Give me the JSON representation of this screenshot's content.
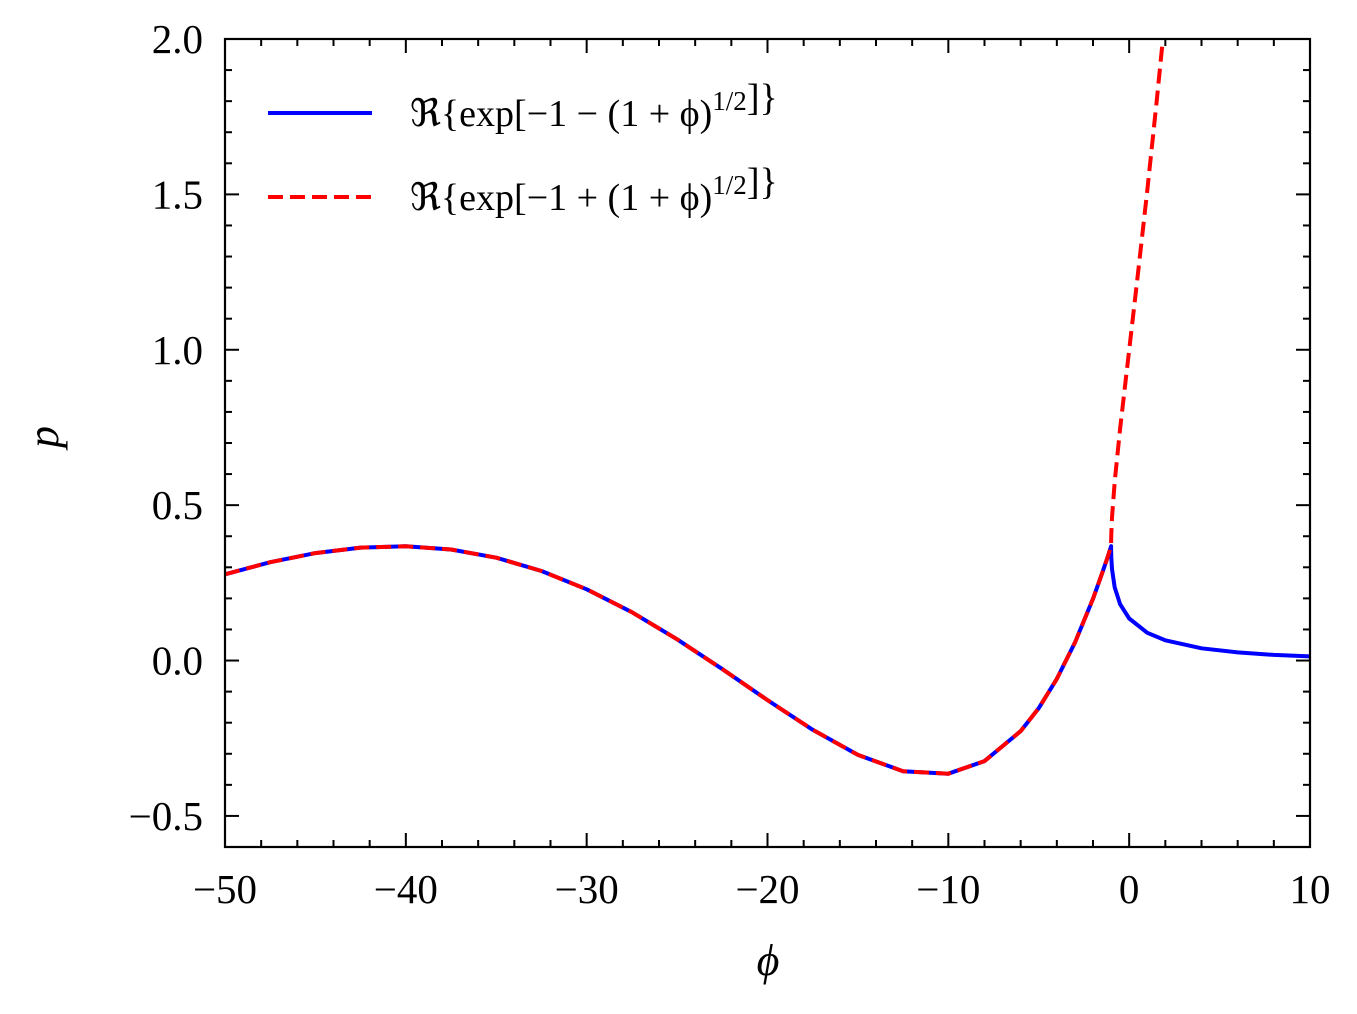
{
  "chart_data": {
    "type": "line",
    "title": "",
    "xlabel": "ϕ",
    "ylabel": "p",
    "xlim": [
      -50,
      10
    ],
    "ylim": [
      -0.6,
      2.0
    ],
    "xticks": [
      -50,
      -40,
      -30,
      -20,
      -10,
      0,
      10
    ],
    "xtick_labels": [
      "−50",
      "−40",
      "−30",
      "−20",
      "−10",
      "0",
      "10"
    ],
    "yticks": [
      -0.5,
      0.0,
      0.5,
      1.0,
      1.5,
      2.0
    ],
    "ytick_labels": [
      "−0.5",
      "0.0",
      "0.5",
      "1.0",
      "1.5",
      "2.0"
    ],
    "x_minor_step": 2,
    "y_minor_step": 0.1,
    "ticks_direction": "in",
    "grid": false,
    "legend_position": "top-left",
    "series": [
      {
        "name": "ℜ{exp[−1 − (1 + ϕ)^{1/2}]}",
        "color": "#0000ff",
        "style": "solid",
        "x": [
          -50,
          -47.5,
          -45,
          -42.5,
          -40,
          -37.5,
          -35,
          -32.5,
          -30,
          -27.5,
          -25,
          -22.5,
          -20,
          -17.5,
          -15,
          -12.5,
          -10,
          -8,
          -6,
          -5,
          -4,
          -3,
          -2,
          -1.5,
          -1.2,
          -1,
          -0.999,
          -0.99,
          -0.95,
          -0.8,
          -0.5,
          0,
          1,
          2,
          4,
          6,
          8,
          10
        ],
        "y": [
          0.2774,
          0.3164,
          0.3456,
          0.3633,
          0.3675,
          0.3573,
          0.331,
          0.2881,
          0.2293,
          0.1555,
          0.0684,
          -0.0276,
          -0.1273,
          -0.2228,
          -0.3036,
          -0.3565,
          -0.3642,
          -0.3237,
          -0.2271,
          -0.1531,
          -0.0591,
          0.0574,
          0.1988,
          0.2797,
          0.3317,
          0.3679,
          0.3564,
          0.3329,
          0.2942,
          0.2352,
          0.1814,
          0.1353,
          0.0894,
          0.0651,
          0.0393,
          0.0261,
          0.0183,
          0.0134
        ]
      },
      {
        "name": "ℜ{exp[−1 + (1 + ϕ)^{1/2}]}",
        "color": "#ff0000",
        "style": "dashed",
        "x": [
          -50,
          -47.5,
          -45,
          -42.5,
          -40,
          -37.5,
          -35,
          -32.5,
          -30,
          -27.5,
          -25,
          -22.5,
          -20,
          -17.5,
          -15,
          -12.5,
          -10,
          -8,
          -6,
          -5,
          -4,
          -3,
          -2,
          -1.5,
          -1.2,
          -1,
          -0.999,
          -0.99,
          -0.95,
          -0.8,
          -0.5,
          0,
          0.5,
          1,
          1.5,
          1.867
        ],
        "y": [
          0.2774,
          0.3164,
          0.3456,
          0.3633,
          0.3675,
          0.3573,
          0.331,
          0.2881,
          0.2293,
          0.1555,
          0.0684,
          -0.0276,
          -0.1273,
          -0.2228,
          -0.3036,
          -0.3565,
          -0.3642,
          -0.3237,
          -0.2271,
          -0.1531,
          -0.0591,
          0.0574,
          0.1988,
          0.2797,
          0.3317,
          0.3679,
          0.3797,
          0.4066,
          0.4598,
          0.5753,
          0.746,
          1.0,
          1.252,
          1.513,
          1.788,
          2.0
        ]
      }
    ]
  }
}
